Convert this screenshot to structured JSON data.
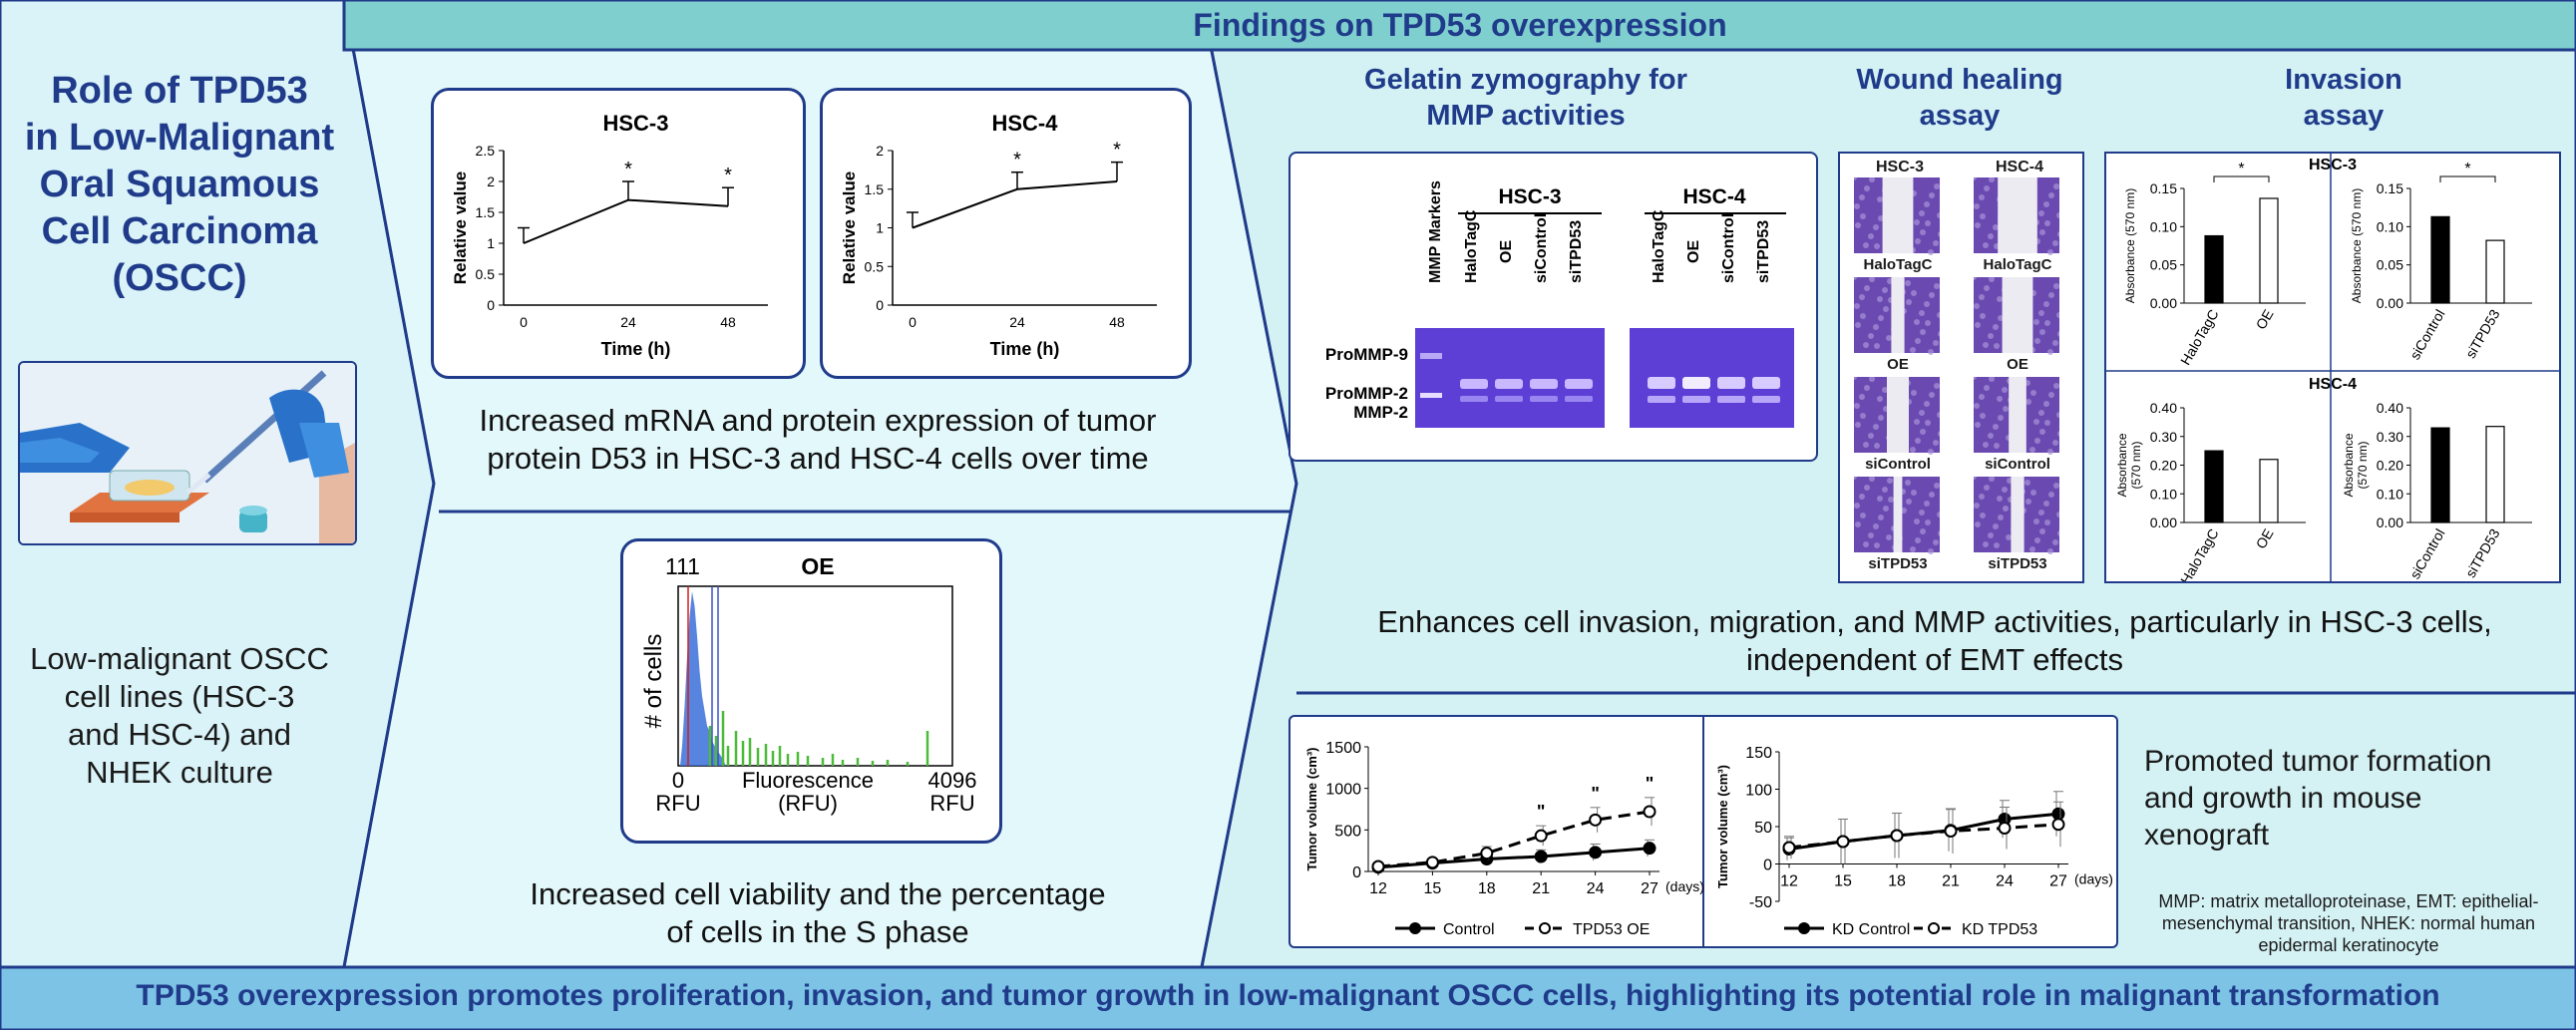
{
  "header": {
    "title": "Findings on TPD53 overexpression"
  },
  "left": {
    "title_lines": [
      "Role of TPD53",
      "in Low-Malignant",
      "Oral Squamous",
      "Cell Carcinoma",
      "(OSCC)"
    ],
    "culture_lines": [
      "Low-malignant OSCC",
      "cell lines (HSC-3",
      "and HSC-4) and",
      "NHEK culture"
    ]
  },
  "mrna": {
    "ylabel": "Relative value",
    "xlabel": "Time (h)",
    "caption_lines": [
      "Increased mRNA and protein expression of tumor",
      "protein D53 in HSC-3 and HSC-4 cells over time"
    ]
  },
  "flow": {
    "title": "OE",
    "gate_label": "111",
    "ylabel": "# of cells",
    "x_left": "0",
    "x_left_unit": "RFU",
    "x_mid": "Fluorescence",
    "x_mid_unit": "(RFU)",
    "x_right": "4096",
    "x_right_unit": "RFU",
    "caption_lines": [
      "Increased cell viability and the percentage",
      "of cells in the S phase"
    ]
  },
  "zymo": {
    "title_lines": [
      "Gelatin zymography for",
      "MMP activities"
    ],
    "group1": "HSC-3",
    "group2": "HSC-4",
    "marker_label": "MMP Markers",
    "lanes": [
      "HaloTagC",
      "OE",
      "siControl",
      "siTPD53"
    ],
    "bands": [
      "ProMMP-9",
      "ProMMP-2",
      "MMP-2"
    ]
  },
  "wound": {
    "title_lines": [
      "Wound healing",
      "assay"
    ],
    "col1": "HSC-3",
    "col2": "HSC-4",
    "rows": [
      "HaloTagC",
      "OE",
      "siControl",
      "siTPD53"
    ]
  },
  "invasion": {
    "title_lines": [
      "Invasion",
      "assay"
    ],
    "top_label": "HSC-3",
    "bottom_label": "HSC-4",
    "ylabel_a": "Absorbance (570 nm)",
    "ylabel_b1": "Absorbance",
    "ylabel_b2": "(570 nm)"
  },
  "right": {
    "invasion_caption_lines": [
      "Enhances cell invasion, migration, and MMP activities, particularly in HSC-3 cells,",
      "independent of EMT effects"
    ],
    "tumor_caption_lines": [
      "Promoted tumor formation",
      "and growth in mouse",
      "xenograft"
    ],
    "abbrev_lines": [
      "MMP: matrix metalloproteinase, EMT: epithelial-",
      "mesenchymal transition, NHEK: normal human",
      "epidermal keratinocyte"
    ],
    "tumor_ylabel": "Tumor volume (cm³)",
    "days_label": "(days)"
  },
  "footer": {
    "text": "TPD53 overexpression promotes proliferation, invasion, and tumor growth in low-malignant OSCC cells, highlighting its potential role in malignant transformation"
  },
  "colors": {
    "teal": "#7fcfcf",
    "light_blue": "#d9f3f8",
    "navy": "#1f3b8a",
    "footer": "#7cc3e6"
  },
  "chart_data": [
    {
      "type": "line",
      "title": "HSC-3",
      "x": [
        0,
        24,
        48
      ],
      "values": [
        1.0,
        1.7,
        1.6
      ],
      "errors": [
        0.25,
        0.3,
        0.3
      ],
      "significance": [
        "",
        "*",
        "*"
      ],
      "xlabel": "Time (h)",
      "ylabel": "Relative value",
      "ylim": [
        0,
        2.5
      ],
      "yticks": [
        "0",
        "0.5",
        "1",
        "1.5",
        "2",
        "2.5"
      ]
    },
    {
      "type": "line",
      "title": "HSC-4",
      "x": [
        0,
        24,
        48
      ],
      "values": [
        1.0,
        1.5,
        1.6
      ],
      "errors": [
        0.2,
        0.22,
        0.25
      ],
      "significance": [
        "",
        "*",
        "*"
      ],
      "xlabel": "Time (h)",
      "ylabel": "Relative value",
      "ylim": [
        0,
        2
      ],
      "yticks": [
        "0",
        "0.5",
        "1",
        "1.5",
        "2"
      ]
    },
    {
      "type": "bar",
      "title": "HSC-3",
      "categories": [
        "HaloTagC",
        "OE"
      ],
      "values": [
        0.088,
        0.137
      ],
      "significance": "*",
      "ylabel": "Absorbance (570 nm)",
      "ylim": [
        0,
        0.15
      ],
      "yticks": [
        "0.00",
        "0.05",
        "0.10",
        "0.15"
      ]
    },
    {
      "type": "bar",
      "title": "",
      "categories": [
        "siControl",
        "siTPD53"
      ],
      "values": [
        0.113,
        0.082
      ],
      "significance": "*",
      "ylabel": "Absorbance (570 nm)",
      "ylim": [
        0,
        0.15
      ],
      "yticks": [
        "0.00",
        "0.05",
        "0.10",
        "0.15"
      ]
    },
    {
      "type": "bar",
      "title": "HSC-4",
      "categories": [
        "HaloTagC",
        "OE"
      ],
      "values": [
        0.25,
        0.22
      ],
      "ylabel": "Absorbance (570 nm)",
      "ylim": [
        0,
        0.4
      ],
      "yticks": [
        "0.00",
        "0.10",
        "0.20",
        "0.30",
        "0.40"
      ]
    },
    {
      "type": "bar",
      "title": "",
      "categories": [
        "siControl",
        "siTPD53"
      ],
      "values": [
        0.33,
        0.335
      ],
      "ylabel": "Absorbance (570 nm)",
      "ylim": [
        0,
        0.4
      ],
      "yticks": [
        "0.00",
        "0.10",
        "0.20",
        "0.30",
        "0.40"
      ]
    },
    {
      "type": "line",
      "title": "",
      "x": [
        12,
        15,
        18,
        21,
        24,
        27
      ],
      "xlabel": "(days)",
      "ylabel": "Tumor volume (cm³)",
      "ylim": [
        0,
        1500
      ],
      "yticks": [
        "0",
        "500",
        "1000",
        "1500"
      ],
      "series": [
        {
          "name": "Control",
          "values": [
            50,
            100,
            150,
            180,
            230,
            280
          ],
          "errors": [
            20,
            30,
            60,
            80,
            100,
            100
          ]
        },
        {
          "name": "TPD53 OE",
          "values": [
            60,
            110,
            220,
            430,
            620,
            720
          ],
          "errors": [
            20,
            40,
            80,
            120,
            150,
            170
          ]
        }
      ],
      "significance": [
        "",
        "",
        "",
        "\"",
        "\"",
        "\""
      ]
    },
    {
      "type": "line",
      "title": "",
      "x": [
        12,
        15,
        18,
        21,
        24,
        27
      ],
      "xlabel": "(days)",
      "ylabel": "Tumor volume (cm³)",
      "ylim": [
        -50,
        150
      ],
      "yticks": [
        "-50",
        "0",
        "50",
        "100",
        "150"
      ],
      "series": [
        {
          "name": "KD Control",
          "values": [
            20,
            30,
            38,
            45,
            60,
            67
          ],
          "errors": [
            15,
            30,
            30,
            28,
            25,
            30
          ]
        },
        {
          "name": "KD TPD53",
          "values": [
            22,
            30,
            38,
            44,
            48,
            53
          ],
          "errors": [
            15,
            30,
            30,
            30,
            28,
            30
          ]
        }
      ]
    }
  ]
}
